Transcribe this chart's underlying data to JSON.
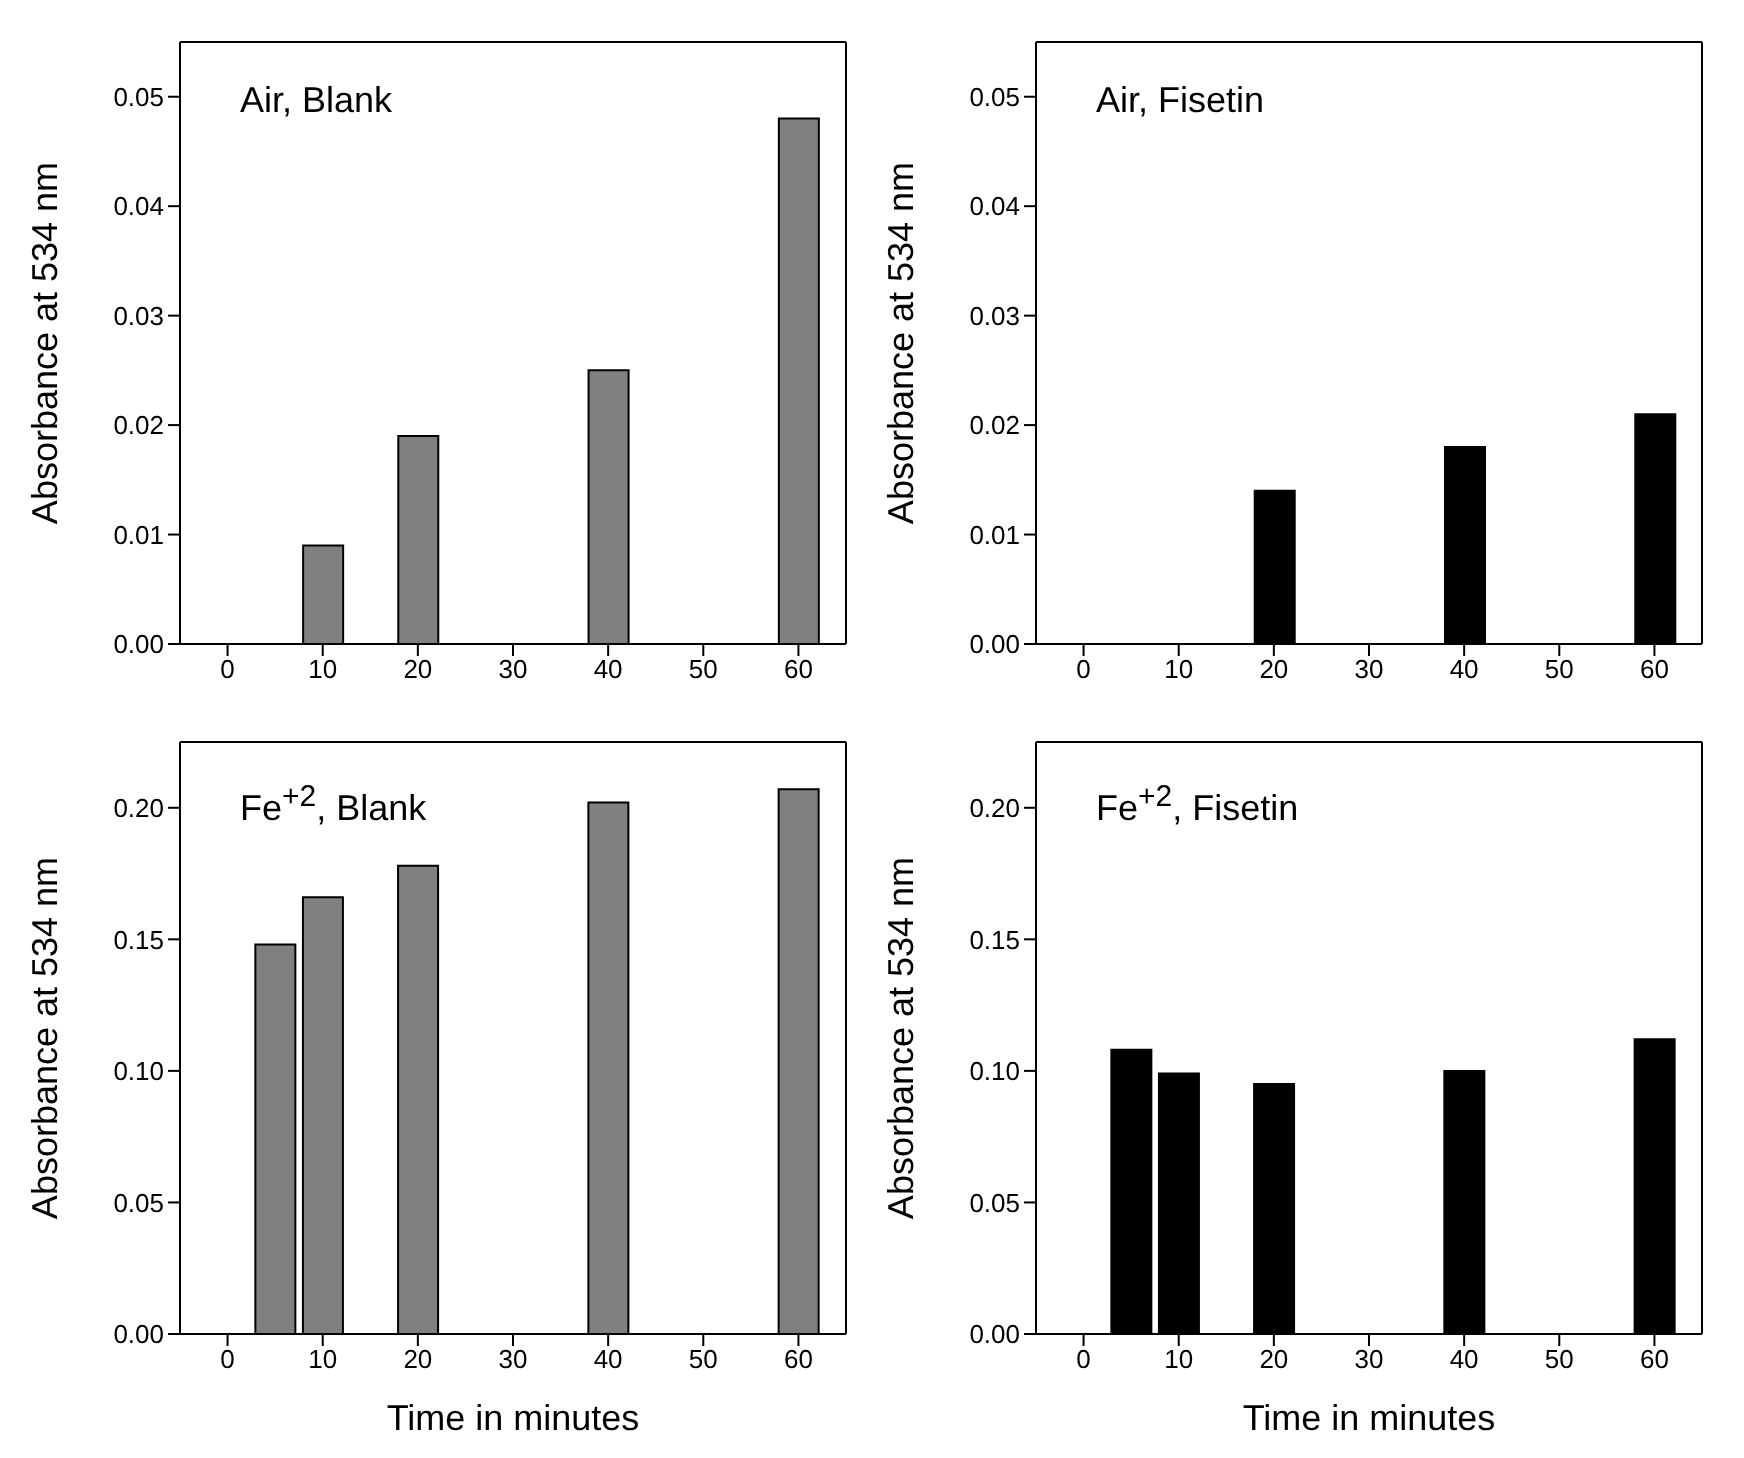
{
  "chart_data": [
    {
      "type": "bar",
      "annotations": [
        "Air, Blank"
      ],
      "ylabel": "Absorbance at 534 nm",
      "x": [
        10,
        20,
        40,
        60
      ],
      "values": [
        0.009,
        0.019,
        0.025,
        0.048
      ],
      "color": "#808080",
      "xlim": [
        -5,
        65
      ],
      "xticks": [
        0,
        10,
        20,
        30,
        40,
        50,
        60
      ],
      "ylim": [
        0,
        0.055
      ],
      "yticks": [
        {
          "value": 0,
          "label": "0.00"
        },
        {
          "value": 0.01,
          "label": "0.01"
        },
        {
          "value": 0.02,
          "label": "0.02"
        },
        {
          "value": 0.03,
          "label": "0.03"
        },
        {
          "value": 0.04,
          "label": "0.04"
        },
        {
          "value": 0.05,
          "label": "0.05"
        }
      ],
      "grid": false,
      "legend": false
    },
    {
      "type": "bar",
      "annotations": [
        "Air, Fisetin"
      ],
      "ylabel": "Absorbance at 534 nm",
      "x": [
        20,
        40,
        60
      ],
      "values": [
        0.014,
        0.018,
        0.021
      ],
      "color": "#000000",
      "xlim": [
        -5,
        65
      ],
      "xticks": [
        0,
        10,
        20,
        30,
        40,
        50,
        60
      ],
      "ylim": [
        0,
        0.055
      ],
      "yticks": [
        {
          "value": 0,
          "label": "0.00"
        },
        {
          "value": 0.01,
          "label": "0.01"
        },
        {
          "value": 0.02,
          "label": "0.02"
        },
        {
          "value": 0.03,
          "label": "0.03"
        },
        {
          "value": 0.04,
          "label": "0.04"
        },
        {
          "value": 0.05,
          "label": "0.05"
        }
      ],
      "grid": false,
      "legend": false
    },
    {
      "type": "bar",
      "annotations": [
        "Fe$^{+2}$, Blank"
      ],
      "xlabel": "Time in minutes",
      "ylabel": "Absorbance at 534 nm",
      "x": [
        5,
        10,
        20,
        40,
        60
      ],
      "values": [
        0.148,
        0.166,
        0.178,
        0.202,
        0.207
      ],
      "color": "#808080",
      "xlim": [
        -5,
        65
      ],
      "xticks": [
        0,
        10,
        20,
        30,
        40,
        50,
        60
      ],
      "ylim": [
        0,
        0.225
      ],
      "yticks": [
        {
          "value": 0,
          "label": "0.00"
        },
        {
          "value": 0.05,
          "label": "0.05"
        },
        {
          "value": 0.1,
          "label": "0.10"
        },
        {
          "value": 0.15,
          "label": "0.15"
        },
        {
          "value": 0.2,
          "label": "0.20"
        }
      ],
      "grid": false,
      "legend": false
    },
    {
      "type": "bar",
      "annotations": [
        "Fe$^{+2}$, Fisetin"
      ],
      "xlabel": "Time in minutes",
      "ylabel": "Absorbance at 534 nm",
      "x": [
        5,
        10,
        20,
        40,
        60
      ],
      "values": [
        0.108,
        0.099,
        0.095,
        0.1,
        0.112
      ],
      "color": "#000000",
      "xlim": [
        -5,
        65
      ],
      "xticks": [
        0,
        10,
        20,
        30,
        40,
        50,
        60
      ],
      "ylim": [
        0,
        0.225
      ],
      "yticks": [
        {
          "value": 0,
          "label": "0.00"
        },
        {
          "value": 0.05,
          "label": "0.05"
        },
        {
          "value": 0.1,
          "label": "0.10"
        },
        {
          "value": 0.15,
          "label": "0.15"
        },
        {
          "value": 0.2,
          "label": "0.20"
        }
      ],
      "grid": false,
      "legend": false
    }
  ]
}
